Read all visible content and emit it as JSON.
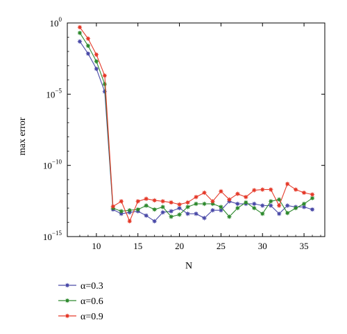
{
  "chart_data": {
    "type": "line",
    "xlabel": "N",
    "ylabel": "max error",
    "xlim": [
      6.5,
      37.5
    ],
    "ylim": [
      1e-15,
      1
    ],
    "yscale": "log",
    "x_ticks": [
      10,
      15,
      20,
      25,
      30,
      35
    ],
    "x_tick_labels": [
      "10",
      "15",
      "20",
      "25",
      "30",
      "35"
    ],
    "y_ticks": [
      1e-15,
      1e-10,
      1e-05,
      1
    ],
    "y_tick_labels": [
      {
        "base": "10",
        "exp": "−15"
      },
      {
        "base": "10",
        "exp": "−10"
      },
      {
        "base": "10",
        "exp": "−5"
      },
      {
        "base": "10",
        "exp": "0"
      }
    ],
    "grid": false,
    "legend_position": "bottom-left, below plot",
    "x": [
      8,
      9,
      10,
      11,
      12,
      13,
      14,
      15,
      16,
      17,
      18,
      19,
      20,
      21,
      22,
      23,
      24,
      25,
      26,
      27,
      28,
      29,
      30,
      31,
      32,
      33,
      34,
      35,
      36
    ],
    "series": [
      {
        "name": "α=0.3",
        "color": "#4b4ba8",
        "values": [
          0.05,
          0.007,
          0.0006,
          1.5e-05,
          8e-14,
          4e-14,
          5e-14,
          6e-14,
          3e-14,
          1.2e-14,
          5e-14,
          6e-14,
          1e-13,
          4e-14,
          4e-14,
          2e-14,
          7e-14,
          7e-14,
          3e-13,
          2e-13,
          2e-13,
          2e-13,
          1.5e-13,
          1.5e-13,
          4e-14,
          1.5e-13,
          1.2e-13,
          1.2e-13,
          8e-14
        ]
      },
      {
        "name": "α=0.6",
        "color": "#2f8a2f",
        "values": [
          0.2,
          0.025,
          0.002,
          5e-05,
          1e-13,
          6e-14,
          7e-14,
          8e-14,
          1.5e-13,
          8e-14,
          1.2e-13,
          2.5e-14,
          3.5e-14,
          1.2e-13,
          2e-13,
          2e-13,
          2e-13,
          1.2e-13,
          2.5e-14,
          1e-13,
          2.5e-13,
          1e-13,
          4e-14,
          3e-13,
          4e-13,
          4.5e-14,
          1e-13,
          2e-13,
          5e-13
        ]
      },
      {
        "name": "α=0.9",
        "color": "#e53a2a",
        "values": [
          0.5,
          0.08,
          0.006,
          0.0002,
          1.3e-13,
          3e-13,
          1.2e-14,
          3e-13,
          4.5e-13,
          3.5e-13,
          3e-13,
          2.5e-13,
          1.8e-13,
          2.5e-13,
          6e-13,
          1.2e-12,
          3e-13,
          1.5e-12,
          4e-13,
          1e-12,
          6e-13,
          1.8e-12,
          2e-12,
          2e-12,
          1.5e-13,
          5e-12,
          2e-12,
          1.2e-12,
          9e-13
        ]
      }
    ]
  }
}
